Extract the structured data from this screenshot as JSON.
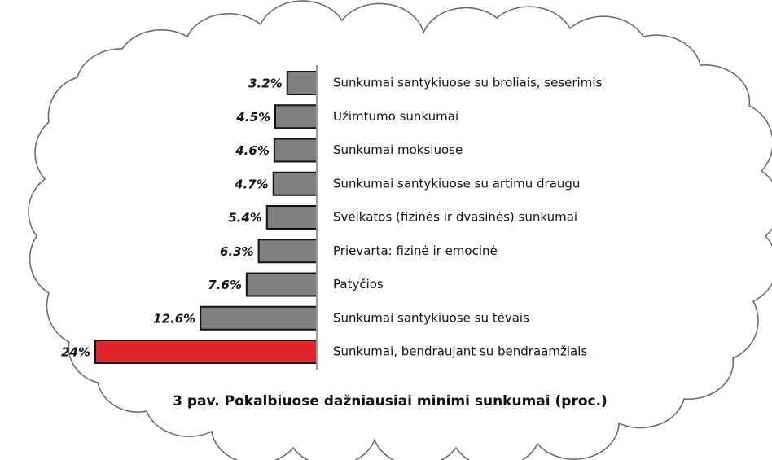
{
  "chart_data": {
    "type": "bar",
    "orientation": "horizontal",
    "title": "3 pav. Pokalbiuose dažniausiai minimi sunkumai (proc.)",
    "categories": [
      "Sunkumai santykiuose su broliais, seserimis",
      "Užimtumo sunkumai",
      "Sunkumai moksluose",
      "Sunkumai santykiuose su artimu draugu",
      "Sveikatos (fizinės ir dvasinės) sunkumai",
      "Prievarta: fizinė ir emocinė",
      "Patyčios",
      "Sunkumai santykiuose su tėvais",
      "Sunkumai, bendraujant su bendraamžiais"
    ],
    "values": [
      3.2,
      4.5,
      4.6,
      4.7,
      5.4,
      6.3,
      7.6,
      12.6,
      24
    ],
    "value_labels": [
      "3.2%",
      "4.5%",
      "4.6%",
      "4.7%",
      "5.4%",
      "6.3%",
      "7.6%",
      "12.6%",
      "24%"
    ],
    "colors": [
      "#808080",
      "#808080",
      "#808080",
      "#808080",
      "#808080",
      "#808080",
      "#808080",
      "#808080",
      "#e0242b"
    ]
  }
}
